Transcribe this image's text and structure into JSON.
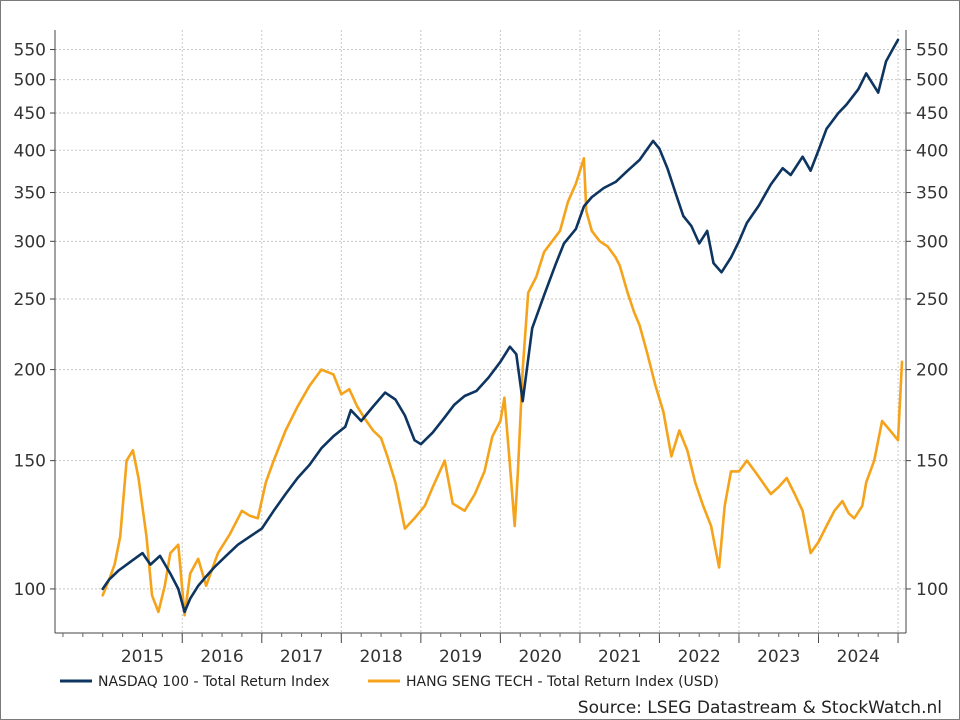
{
  "chart_data": {
    "type": "line",
    "title": "",
    "xlabel": "",
    "ylabel": "",
    "x_tick_labels": [
      "2015",
      "2016",
      "2017",
      "2018",
      "2019",
      "2020",
      "2021",
      "2022",
      "2023",
      "2024"
    ],
    "y_scale": "log",
    "ylim": [
      87,
      585
    ],
    "y_tick_labels": [
      "100",
      "150",
      "200",
      "250",
      "300",
      "350",
      "400",
      "450",
      "500",
      "550"
    ],
    "grid": true,
    "legend_position": "bottom",
    "series": [
      {
        "name": "NASDAQ 100 - Total Return Index",
        "color": "#0d3560",
        "x": [
          2015.0,
          2015.08,
          2015.2,
          2015.35,
          2015.5,
          2015.6,
          2015.72,
          2015.85,
          2015.95,
          2016.03,
          2016.1,
          2016.2,
          2016.3,
          2016.4,
          2016.55,
          2016.7,
          2016.85,
          2017.0,
          2017.15,
          2017.3,
          2017.45,
          2017.6,
          2017.75,
          2017.9,
          2018.05,
          2018.12,
          2018.25,
          2018.4,
          2018.55,
          2018.68,
          2018.8,
          2018.92,
          2019.0,
          2019.15,
          2019.3,
          2019.42,
          2019.55,
          2019.7,
          2019.85,
          2020.0,
          2020.12,
          2020.2,
          2020.28,
          2020.4,
          2020.55,
          2020.7,
          2020.8,
          2020.95,
          2021.05,
          2021.15,
          2021.3,
          2021.45,
          2021.6,
          2021.75,
          2021.92,
          2022.0,
          2022.1,
          2022.2,
          2022.3,
          2022.4,
          2022.5,
          2022.6,
          2022.68,
          2022.78,
          2022.9,
          2023.0,
          2023.1,
          2023.25,
          2023.4,
          2023.55,
          2023.65,
          2023.8,
          2023.9,
          2024.0,
          2024.1,
          2024.25,
          2024.35,
          2024.5,
          2024.6,
          2024.75,
          2024.85,
          2024.95,
          2025.0
        ],
        "y": [
          100,
          103,
          106,
          109,
          112,
          108,
          111,
          105,
          100,
          93,
          97,
          101,
          104,
          107,
          111,
          115,
          118,
          121,
          128,
          135,
          142,
          148,
          156,
          162,
          167,
          176,
          170,
          178,
          186,
          182,
          173,
          160,
          158,
          164,
          172,
          179,
          184,
          187,
          195,
          205,
          215,
          210,
          181,
          228,
          253,
          280,
          298,
          312,
          335,
          345,
          355,
          362,
          375,
          388,
          412,
          402,
          378,
          350,
          325,
          315,
          298,
          310,
          280,
          272,
          285,
          300,
          318,
          336,
          359,
          378,
          370,
          392,
          375,
          400,
          428,
          450,
          462,
          485,
          510,
          480,
          530,
          555,
          567
        ]
      },
      {
        "name": "HANG SENG TECH - Total Return Index (USD)",
        "color": "#f5a31a",
        "x": [
          2015.0,
          2015.08,
          2015.15,
          2015.22,
          2015.3,
          2015.38,
          2015.45,
          2015.55,
          2015.62,
          2015.7,
          2015.78,
          2015.85,
          2015.95,
          2016.03,
          2016.1,
          2016.2,
          2016.3,
          2016.45,
          2016.6,
          2016.75,
          2016.85,
          2016.95,
          2017.05,
          2017.15,
          2017.3,
          2017.45,
          2017.6,
          2017.75,
          2017.9,
          2018.0,
          2018.1,
          2018.2,
          2018.3,
          2018.4,
          2018.5,
          2018.58,
          2018.68,
          2018.8,
          2018.92,
          2019.05,
          2019.15,
          2019.3,
          2019.4,
          2019.55,
          2019.68,
          2019.8,
          2019.9,
          2020.0,
          2020.05,
          2020.12,
          2020.18,
          2020.22,
          2020.28,
          2020.35,
          2020.45,
          2020.55,
          2020.65,
          2020.75,
          2020.85,
          2020.95,
          2021.05,
          2021.08,
          2021.15,
          2021.25,
          2021.35,
          2021.45,
          2021.5,
          2021.6,
          2021.68,
          2021.75,
          2021.85,
          2021.95,
          2022.05,
          2022.15,
          2022.25,
          2022.35,
          2022.45,
          2022.55,
          2022.65,
          2022.75,
          2022.82,
          2022.9,
          2023.0,
          2023.1,
          2023.2,
          2023.3,
          2023.4,
          2023.5,
          2023.6,
          2023.7,
          2023.8,
          2023.9,
          2024.0,
          2024.1,
          2024.2,
          2024.3,
          2024.38,
          2024.45,
          2024.55,
          2024.6,
          2024.7,
          2024.8,
          2024.9,
          2025.0,
          2025.05
        ],
        "y": [
          98,
          103,
          108,
          118,
          150,
          155,
          142,
          118,
          98,
          93,
          101,
          112,
          115,
          92,
          105,
          110,
          101,
          112,
          119,
          128,
          126,
          125,
          140,
          150,
          165,
          178,
          190,
          200,
          197,
          185,
          188,
          178,
          171,
          165,
          161,
          152,
          140,
          121,
          125,
          130,
          138,
          150,
          131,
          128,
          135,
          145,
          162,
          170,
          183,
          148,
          122,
          145,
          200,
          255,
          268,
          290,
          300,
          310,
          340,
          360,
          390,
          330,
          310,
          300,
          295,
          285,
          278,
          255,
          240,
          230,
          210,
          190,
          175,
          152,
          165,
          155,
          140,
          130,
          122,
          107,
          130,
          145,
          145,
          150,
          145,
          140,
          135,
          138,
          142,
          135,
          128,
          112,
          116,
          122,
          128,
          132,
          127,
          125,
          130,
          140,
          150,
          170,
          165,
          160,
          205
        ]
      }
    ]
  },
  "legend": {
    "nasdaq_label": "NASDAQ 100 - Total Return Index",
    "hang_seng_label": "HANG SENG TECH - Total Return Index (USD)"
  },
  "source": "Source: LSEG Datastream & StockWatch.nl"
}
